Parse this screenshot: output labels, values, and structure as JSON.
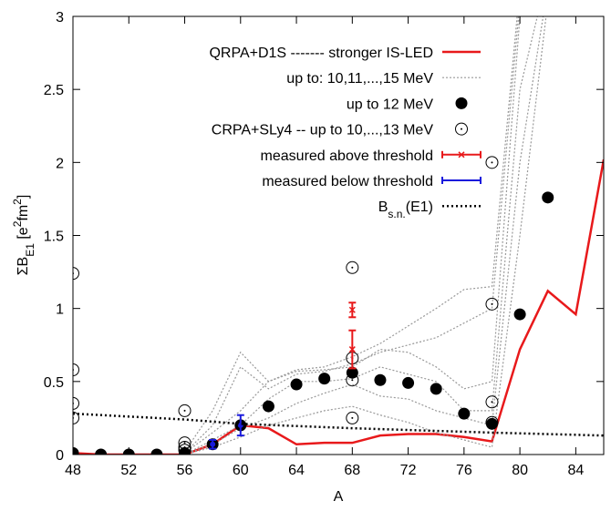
{
  "chart_data": {
    "type": "line",
    "xlabel": "A",
    "ylabel": [
      {
        "text": "ΣB"
      },
      {
        "text": "E1",
        "shift": "sub"
      },
      {
        "text": " [e"
      },
      {
        "text": "2",
        "shift": "sup"
      },
      {
        "text": "fm"
      },
      {
        "text": "2",
        "shift": "sup"
      },
      {
        "text": "]"
      }
    ],
    "xlim": [
      48,
      86
    ],
    "ylim": [
      0,
      3
    ],
    "xticks": [
      48,
      52,
      56,
      60,
      64,
      68,
      72,
      76,
      80,
      84
    ],
    "yticks": [
      0,
      0.5,
      1,
      1.5,
      2,
      2.5,
      3
    ],
    "series": [
      {
        "name": "QRPA+D1S ------- stronger IS-LED",
        "style": "line",
        "color": "#e8191b",
        "x": [
          48,
          50,
          52,
          54,
          56,
          58,
          60,
          62,
          64,
          66,
          68,
          70,
          72,
          74,
          76,
          78,
          80,
          82,
          84,
          86
        ],
        "values": [
          0.01,
          0,
          0,
          0,
          0,
          0.07,
          0.2,
          0.18,
          0.07,
          0.08,
          0.08,
          0.13,
          0.14,
          0.14,
          0.12,
          0.09,
          0.72,
          1.12,
          0.96,
          2.02
        ]
      },
      {
        "name": "up to: 10,11,...,15 MeV",
        "style": "dotted-lines",
        "color": "#999999",
        "lines": [
          {
            "x": [
              56,
              58,
              60,
              62,
              64,
              66,
              68,
              70,
              72,
              74,
              76,
              78,
              80
            ],
            "values": [
              0.02,
              0.3,
              0.7,
              0.5,
              0.58,
              0.6,
              0.67,
              0.76,
              0.88,
              1.0,
              1.13,
              1.15,
              3.2
            ]
          },
          {
            "x": [
              56,
              58,
              60,
              62,
              64,
              66,
              68,
              70,
              72,
              74,
              76,
              78,
              80
            ],
            "values": [
              0.01,
              0.2,
              0.6,
              0.45,
              0.55,
              0.57,
              0.62,
              0.7,
              0.75,
              0.8,
              0.9,
              1.0,
              3.1
            ]
          },
          {
            "x": [
              56,
              58,
              60,
              62,
              64,
              66,
              68,
              70,
              72,
              74,
              76,
              78,
              80
            ],
            "values": [
              0.01,
              0.15,
              0.3,
              0.5,
              0.57,
              0.58,
              0.6,
              0.72,
              0.7,
              0.6,
              0.45,
              0.5,
              3.0
            ]
          },
          {
            "x": [
              56,
              58,
              60,
              62,
              64,
              66,
              68,
              70,
              72,
              74,
              76,
              78,
              80,
              82
            ],
            "values": [
              0,
              0.1,
              0.2,
              0.38,
              0.5,
              0.5,
              0.52,
              0.6,
              0.55,
              0.5,
              0.3,
              0.3,
              2.5,
              3.3
            ]
          },
          {
            "x": [
              56,
              58,
              60,
              62,
              64,
              66,
              68,
              70,
              72,
              74,
              76,
              78,
              80,
              82
            ],
            "values": [
              0,
              0.07,
              0.18,
              0.25,
              0.35,
              0.42,
              0.48,
              0.4,
              0.38,
              0.3,
              0.25,
              0.2,
              2.0,
              3.2
            ]
          },
          {
            "x": [
              56,
              58,
              60,
              62,
              64,
              66,
              68,
              70,
              72,
              74,
              76,
              78,
              80,
              82
            ],
            "values": [
              0,
              0.05,
              0.12,
              0.2,
              0.25,
              0.3,
              0.33,
              0.27,
              0.22,
              0.15,
              0.1,
              0.05,
              1.5,
              3.1
            ]
          }
        ]
      },
      {
        "name": "up to 12 MeV",
        "style": "points",
        "color": "#000000",
        "x": [
          48,
          50,
          52,
          54,
          56,
          58,
          60,
          62,
          64,
          66,
          68,
          70,
          72,
          74,
          76,
          78,
          80,
          82
        ],
        "values": [
          0.01,
          0,
          0,
          0,
          0.01,
          0.07,
          0.2,
          0.33,
          0.48,
          0.52,
          0.56,
          0.51,
          0.49,
          0.45,
          0.28,
          0.21,
          0.96,
          1.76
        ]
      },
      {
        "name": "CRPA+SLy4 -- up to 10,...,13 MeV",
        "style": "open-points",
        "color": "#000000",
        "x": [
          48,
          48,
          48,
          48,
          56,
          56,
          56,
          56,
          68,
          68,
          68,
          68,
          78,
          78,
          78,
          78
        ],
        "values": [
          1.24,
          0.58,
          0.35,
          0.25,
          0.3,
          0.08,
          0.05,
          0.03,
          1.28,
          0.66,
          0.51,
          0.25,
          2.0,
          1.03,
          0.36,
          0.22
        ]
      },
      {
        "name": "measured above threshold",
        "style": "errorbar",
        "marker": "x",
        "color": "#e8191b",
        "x": [
          68,
          68
        ],
        "values": [
          0.99,
          0.72
        ],
        "errors": [
          0.05,
          0.13
        ]
      },
      {
        "name": "measured below threshold",
        "style": "errorbar",
        "marker": "dot",
        "color": "#1a1adc",
        "x": [
          58,
          60
        ],
        "values": [
          0.07,
          0.2
        ],
        "errors": [
          0.03,
          0.07
        ]
      },
      {
        "name": [
          {
            "text": "B"
          },
          {
            "text": "s.n.",
            "shift": "sub"
          },
          {
            "text": "(E1)"
          }
        ],
        "style": "dotted-line",
        "color": "#000000",
        "x": [
          48,
          56,
          60,
          68,
          78,
          86
        ],
        "values": [
          0.28,
          0.24,
          0.21,
          0.18,
          0.15,
          0.13
        ]
      }
    ]
  }
}
